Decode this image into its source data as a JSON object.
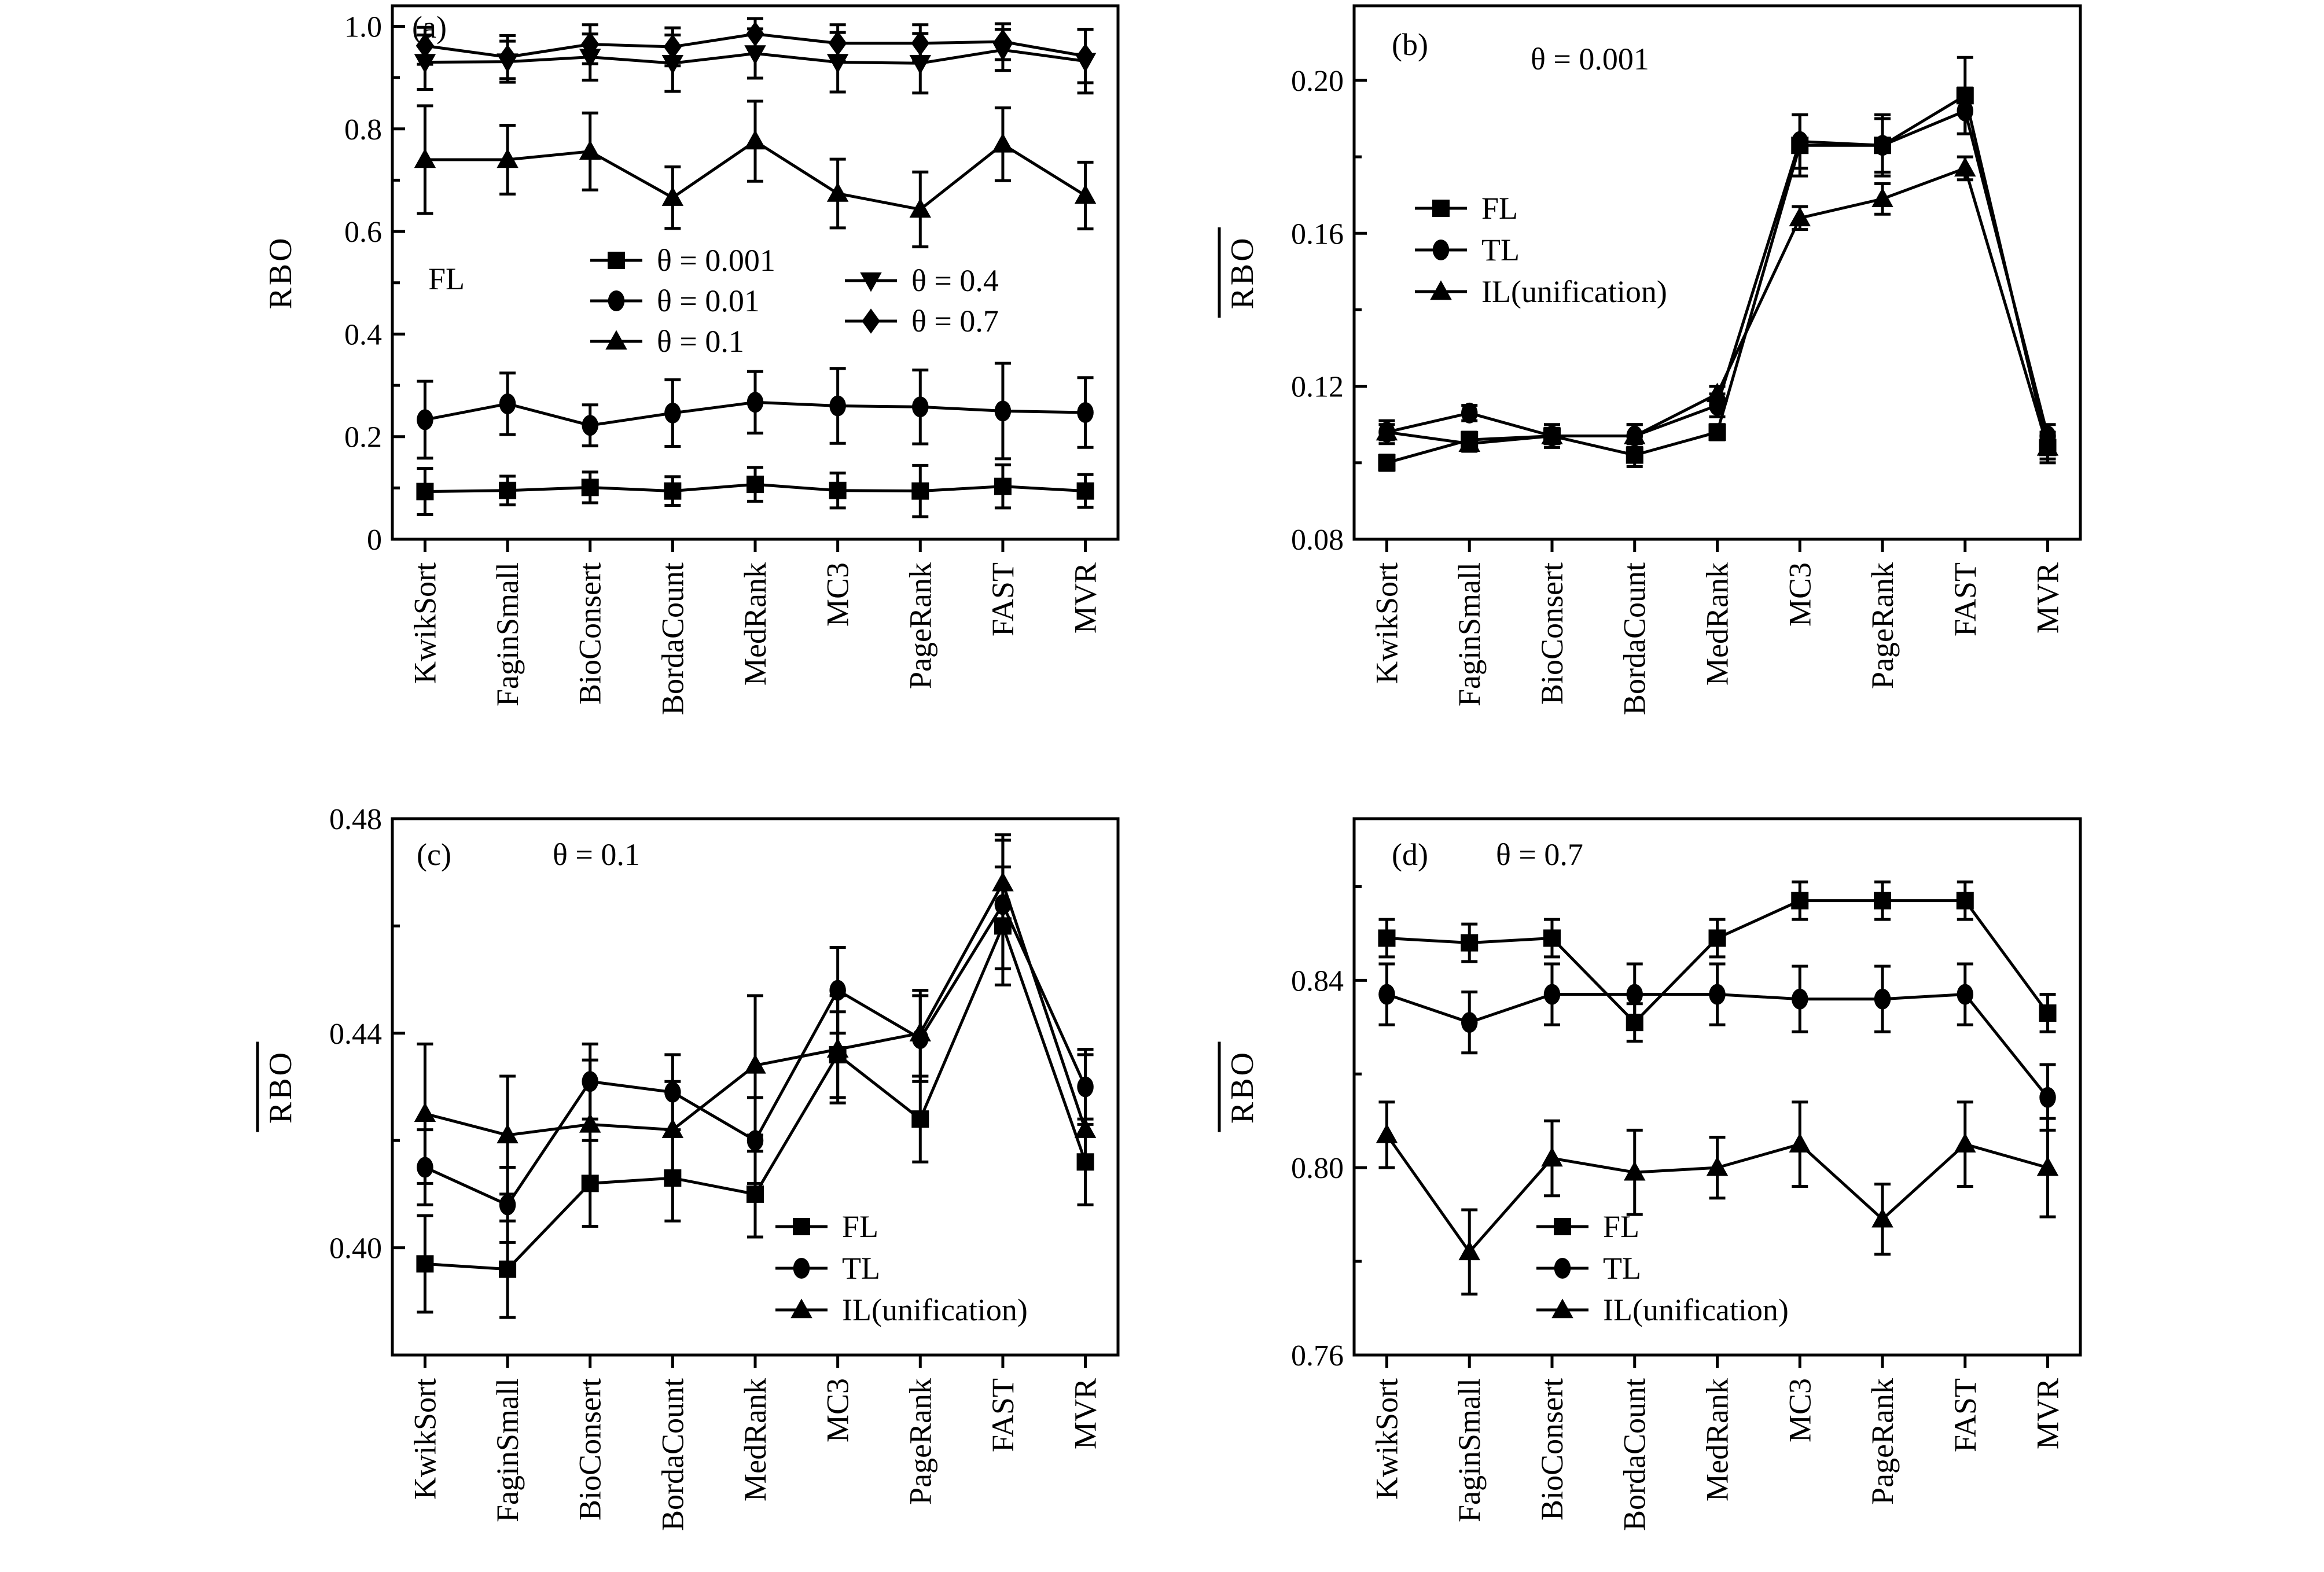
{
  "chart_data": [
    {
      "type": "line",
      "panel_label": "(a)",
      "annotation": "FL",
      "title": "",
      "xlabel": "",
      "ylabel": "RBO",
      "ylabel_overline": false,
      "ylim": [
        0,
        1.04
      ],
      "yticks": [
        0,
        0.2,
        0.4,
        0.6,
        0.8,
        1.0
      ],
      "ytick_labels": [
        "0",
        "0.2",
        "0.4",
        "0.6",
        "0.8",
        "1.0"
      ],
      "yminor": [
        0.1,
        0.3,
        0.5,
        0.7,
        0.9
      ],
      "categories": [
        "KwikSort",
        "FaginSmall",
        "BioConsert",
        "BordaCount",
        "MedRank",
        "MC3",
        "PageRank",
        "FAST",
        "MVR"
      ],
      "legend_position": "center",
      "legend_columns": 2,
      "series": [
        {
          "name": "θ = 0.001",
          "marker": "square",
          "values": [
            0.093,
            0.095,
            0.101,
            0.094,
            0.107,
            0.095,
            0.094,
            0.103,
            0.094
          ],
          "errors": [
            0.045,
            0.028,
            0.03,
            0.028,
            0.033,
            0.034,
            0.05,
            0.042,
            0.032
          ]
        },
        {
          "name": "θ = 0.01",
          "marker": "circle",
          "values": [
            0.233,
            0.264,
            0.222,
            0.246,
            0.267,
            0.26,
            0.258,
            0.25,
            0.247
          ],
          "errors": [
            0.075,
            0.06,
            0.04,
            0.065,
            0.06,
            0.073,
            0.072,
            0.093,
            0.068
          ]
        },
        {
          "name": "θ = 0.1",
          "marker": "triangle-up",
          "values": [
            0.74,
            0.74,
            0.756,
            0.666,
            0.776,
            0.674,
            0.643,
            0.77,
            0.67
          ],
          "errors": [
            0.105,
            0.067,
            0.075,
            0.06,
            0.078,
            0.067,
            0.073,
            0.071,
            0.065
          ]
        },
        {
          "name": "θ = 0.4",
          "marker": "triangle-down",
          "values": [
            0.93,
            0.931,
            0.94,
            0.928,
            0.947,
            0.93,
            0.928,
            0.954,
            0.932
          ],
          "errors": [
            0.053,
            0.04,
            0.045,
            0.055,
            0.048,
            0.058,
            0.058,
            0.04,
            0.062
          ]
        },
        {
          "name": "θ = 0.7",
          "marker": "diamond",
          "values": [
            0.962,
            0.94,
            0.965,
            0.96,
            0.985,
            0.967,
            0.967,
            0.97,
            0.942
          ],
          "errors": [
            0.036,
            0.042,
            0.038,
            0.037,
            0.03,
            0.036,
            0.036,
            0.035,
            0.052
          ]
        }
      ]
    },
    {
      "type": "line",
      "panel_label": "(b)",
      "annotation": "θ = 0.001",
      "title": "",
      "xlabel": "",
      "ylabel": "RBO",
      "ylabel_overline": true,
      "ylim": [
        0.08,
        0.2195
      ],
      "yticks": [
        0.08,
        0.12,
        0.16,
        0.2
      ],
      "ytick_labels": [
        "0.08",
        "0.12",
        "0.16",
        "0.20"
      ],
      "yminor": [
        0.1,
        0.14,
        0.18
      ],
      "categories": [
        "KwikSort",
        "FaginSmall",
        "BioConsert",
        "BordaCount",
        "MedRank",
        "MC3",
        "PageRank",
        "FAST",
        "MVR"
      ],
      "legend_position": "center-left",
      "legend_columns": 1,
      "series": [
        {
          "name": "FL",
          "marker": "square",
          "values": [
            0.1,
            0.106,
            0.107,
            0.102,
            0.108,
            0.183,
            0.183,
            0.196,
            0.104
          ],
          "errors": [
            0.002,
            0.002,
            0.002,
            0.003,
            0.002,
            0.008,
            0.008,
            0.01,
            0.003
          ]
        },
        {
          "name": "TL",
          "marker": "circle",
          "values": [
            0.108,
            0.113,
            0.107,
            0.107,
            0.115,
            0.184,
            0.183,
            0.192,
            0.107
          ],
          "errors": [
            0.003,
            0.002,
            0.003,
            0.003,
            0.003,
            0.007,
            0.007,
            0.006,
            0.003
          ]
        },
        {
          "name": "IL(unification)",
          "marker": "triangle-up",
          "values": [
            0.108,
            0.105,
            0.107,
            0.107,
            0.118,
            0.164,
            0.169,
            0.177,
            0.104
          ],
          "errors": [
            0.002,
            0.002,
            0.002,
            0.003,
            0.002,
            0.003,
            0.004,
            0.003,
            0.004
          ]
        }
      ]
    },
    {
      "type": "line",
      "panel_label": "(c)",
      "annotation": "θ = 0.1",
      "title": "",
      "xlabel": "",
      "ylabel": "RBO",
      "ylabel_overline": true,
      "ylim": [
        0.38,
        0.48
      ],
      "yticks": [
        0.4,
        0.44,
        0.48
      ],
      "ytick_labels": [
        "0.40",
        "0.44",
        "0.48"
      ],
      "yminor": [
        0.42,
        0.46
      ],
      "categories": [
        "KwikSort",
        "FaginSmall",
        "BioConsert",
        "BordaCount",
        "MedRank",
        "MC3",
        "PageRank",
        "FAST",
        "MVR"
      ],
      "legend_position": "bottom-right",
      "legend_columns": 1,
      "series": [
        {
          "name": "FL",
          "marker": "square",
          "values": [
            0.397,
            0.396,
            0.412,
            0.413,
            0.41,
            0.436,
            0.424,
            0.46,
            0.416
          ],
          "errors": [
            0.009,
            0.009,
            0.008,
            0.008,
            0.008,
            0.008,
            0.008,
            0.011,
            0.008
          ]
        },
        {
          "name": "TL",
          "marker": "circle",
          "values": [
            0.415,
            0.408,
            0.431,
            0.429,
            0.42,
            0.448,
            0.439,
            0.464,
            0.43
          ],
          "errors": [
            0.007,
            0.007,
            0.007,
            0.007,
            0.008,
            0.008,
            0.008,
            0.012,
            0.007
          ]
        },
        {
          "name": "IL(unification)",
          "marker": "triangle-up",
          "values": [
            0.425,
            0.421,
            0.423,
            0.422,
            0.434,
            0.437,
            0.44,
            0.468,
            0.422
          ],
          "errors": [
            0.013,
            0.011,
            0.012,
            0.009,
            0.013,
            0.01,
            0.008,
            0.009,
            0.014
          ]
        }
      ]
    },
    {
      "type": "line",
      "panel_label": "(d)",
      "annotation": "θ = 0.7",
      "title": "",
      "xlabel": "",
      "ylabel": "RBO",
      "ylabel_overline": true,
      "ylim": [
        0.76,
        0.8745
      ],
      "yticks": [
        0.76,
        0.8,
        0.84
      ],
      "ytick_labels": [
        "0.76",
        "0.80",
        "0.84"
      ],
      "yminor": [
        0.78,
        0.82,
        0.86
      ],
      "categories": [
        "KwikSort",
        "FaginSmall",
        "BioConsert",
        "BordaCount",
        "MedRank",
        "MC3",
        "PageRank",
        "FAST",
        "MVR"
      ],
      "legend_position": "bottom-center",
      "legend_columns": 1,
      "series": [
        {
          "name": "FL",
          "marker": "square",
          "values": [
            0.849,
            0.848,
            0.849,
            0.831,
            0.849,
            0.857,
            0.857,
            0.857,
            0.833
          ],
          "errors": [
            0.004,
            0.004,
            0.004,
            0.004,
            0.004,
            0.004,
            0.004,
            0.004,
            0.004
          ]
        },
        {
          "name": "TL",
          "marker": "circle",
          "values": [
            0.837,
            0.831,
            0.837,
            0.837,
            0.837,
            0.836,
            0.836,
            0.837,
            0.815
          ],
          "errors": [
            0.0065,
            0.0065,
            0.0065,
            0.0065,
            0.0065,
            0.007,
            0.007,
            0.0065,
            0.007
          ]
        },
        {
          "name": "IL(unification)",
          "marker": "triangle-up",
          "values": [
            0.807,
            0.782,
            0.802,
            0.799,
            0.8,
            0.805,
            0.789,
            0.805,
            0.8
          ],
          "errors": [
            0.007,
            0.009,
            0.008,
            0.009,
            0.0065,
            0.009,
            0.0075,
            0.009,
            0.0105
          ]
        }
      ]
    }
  ]
}
